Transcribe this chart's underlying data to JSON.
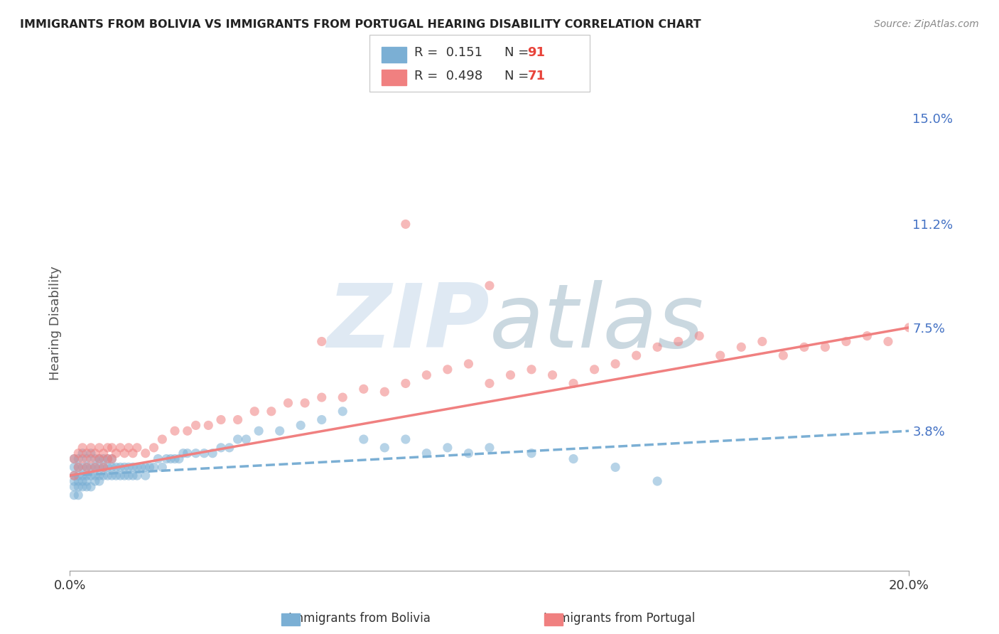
{
  "title": "IMMIGRANTS FROM BOLIVIA VS IMMIGRANTS FROM PORTUGAL HEARING DISABILITY CORRELATION CHART",
  "source": "Source: ZipAtlas.com",
  "ylabel_label": "Hearing Disability",
  "ytick_labels": [
    "15.0%",
    "11.2%",
    "7.5%",
    "3.8%"
  ],
  "ytick_values": [
    0.15,
    0.112,
    0.075,
    0.038
  ],
  "xlim": [
    0.0,
    0.2
  ],
  "ylim": [
    -0.012,
    0.165
  ],
  "bolivia_color": "#7bafd4",
  "portugal_color": "#f08080",
  "bolivia_R": "0.151",
  "bolivia_N": "91",
  "portugal_R": "0.498",
  "portugal_N": "71",
  "bolivia_trend_x": [
    0.0,
    0.2
  ],
  "bolivia_trend_y": [
    0.022,
    0.038
  ],
  "portugal_trend_x": [
    0.0,
    0.2
  ],
  "portugal_trend_y": [
    0.022,
    0.075
  ],
  "watermark_color": "#c5d8ea",
  "watermark_alpha": 0.55,
  "background_color": "#ffffff",
  "grid_color": "#d0d0d0",
  "right_tick_color": "#4472c4",
  "bolivia_scatter_x": [
    0.001,
    0.001,
    0.001,
    0.001,
    0.001,
    0.001,
    0.002,
    0.002,
    0.002,
    0.002,
    0.002,
    0.002,
    0.003,
    0.003,
    0.003,
    0.003,
    0.003,
    0.004,
    0.004,
    0.004,
    0.004,
    0.004,
    0.005,
    0.005,
    0.005,
    0.005,
    0.006,
    0.006,
    0.006,
    0.006,
    0.007,
    0.007,
    0.007,
    0.007,
    0.008,
    0.008,
    0.008,
    0.009,
    0.009,
    0.009,
    0.01,
    0.01,
    0.01,
    0.011,
    0.011,
    0.012,
    0.012,
    0.013,
    0.013,
    0.014,
    0.014,
    0.015,
    0.015,
    0.016,
    0.016,
    0.017,
    0.018,
    0.018,
    0.019,
    0.02,
    0.021,
    0.022,
    0.023,
    0.024,
    0.025,
    0.026,
    0.027,
    0.028,
    0.03,
    0.032,
    0.034,
    0.036,
    0.038,
    0.04,
    0.042,
    0.045,
    0.05,
    0.055,
    0.06,
    0.065,
    0.07,
    0.075,
    0.08,
    0.085,
    0.09,
    0.095,
    0.1,
    0.11,
    0.12,
    0.13,
    0.14
  ],
  "bolivia_scatter_y": [
    0.02,
    0.022,
    0.025,
    0.018,
    0.015,
    0.028,
    0.02,
    0.022,
    0.025,
    0.018,
    0.015,
    0.028,
    0.02,
    0.022,
    0.025,
    0.018,
    0.03,
    0.02,
    0.022,
    0.025,
    0.018,
    0.028,
    0.022,
    0.025,
    0.018,
    0.03,
    0.022,
    0.025,
    0.02,
    0.028,
    0.022,
    0.025,
    0.02,
    0.028,
    0.022,
    0.025,
    0.028,
    0.022,
    0.025,
    0.028,
    0.022,
    0.025,
    0.028,
    0.022,
    0.025,
    0.022,
    0.025,
    0.022,
    0.025,
    0.022,
    0.025,
    0.022,
    0.025,
    0.022,
    0.025,
    0.025,
    0.022,
    0.025,
    0.025,
    0.025,
    0.028,
    0.025,
    0.028,
    0.028,
    0.028,
    0.028,
    0.03,
    0.03,
    0.03,
    0.03,
    0.03,
    0.032,
    0.032,
    0.035,
    0.035,
    0.038,
    0.038,
    0.04,
    0.042,
    0.045,
    0.035,
    0.032,
    0.035,
    0.03,
    0.032,
    0.03,
    0.032,
    0.03,
    0.028,
    0.025,
    0.02
  ],
  "portugal_scatter_x": [
    0.001,
    0.001,
    0.002,
    0.002,
    0.003,
    0.003,
    0.004,
    0.004,
    0.005,
    0.005,
    0.006,
    0.006,
    0.007,
    0.007,
    0.008,
    0.008,
    0.009,
    0.009,
    0.01,
    0.01,
    0.011,
    0.012,
    0.013,
    0.014,
    0.015,
    0.016,
    0.018,
    0.02,
    0.022,
    0.025,
    0.028,
    0.03,
    0.033,
    0.036,
    0.04,
    0.044,
    0.048,
    0.052,
    0.056,
    0.06,
    0.065,
    0.07,
    0.075,
    0.08,
    0.085,
    0.09,
    0.095,
    0.1,
    0.105,
    0.11,
    0.115,
    0.12,
    0.125,
    0.13,
    0.135,
    0.14,
    0.145,
    0.15,
    0.155,
    0.16,
    0.165,
    0.17,
    0.175,
    0.18,
    0.185,
    0.19,
    0.195,
    0.2,
    0.06,
    0.08,
    0.1
  ],
  "portugal_scatter_y": [
    0.022,
    0.028,
    0.025,
    0.03,
    0.028,
    0.032,
    0.025,
    0.03,
    0.028,
    0.032,
    0.025,
    0.03,
    0.028,
    0.032,
    0.025,
    0.03,
    0.028,
    0.032,
    0.028,
    0.032,
    0.03,
    0.032,
    0.03,
    0.032,
    0.03,
    0.032,
    0.03,
    0.032,
    0.035,
    0.038,
    0.038,
    0.04,
    0.04,
    0.042,
    0.042,
    0.045,
    0.045,
    0.048,
    0.048,
    0.05,
    0.05,
    0.053,
    0.052,
    0.055,
    0.058,
    0.06,
    0.062,
    0.055,
    0.058,
    0.06,
    0.058,
    0.055,
    0.06,
    0.062,
    0.065,
    0.068,
    0.07,
    0.072,
    0.065,
    0.068,
    0.07,
    0.065,
    0.068,
    0.068,
    0.07,
    0.072,
    0.07,
    0.075,
    0.07,
    0.112,
    0.09
  ]
}
